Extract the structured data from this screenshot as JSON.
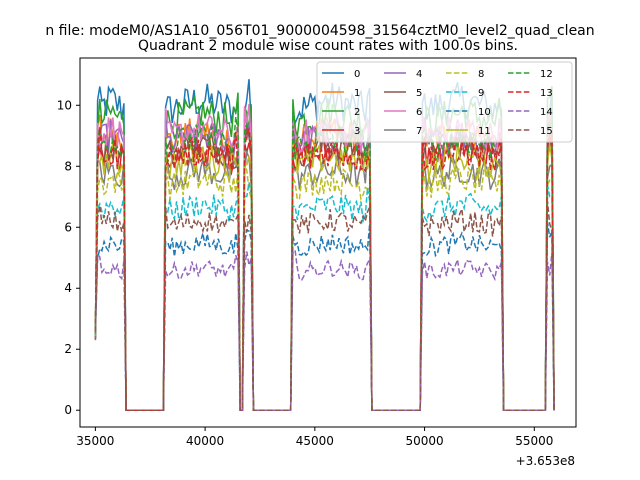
{
  "chart_data": {
    "type": "line",
    "suptitle": "n file: modeM0/AS1A10_056T01_9000004598_31564cztM0_level2_quad_clean",
    "title": "Quadrant 2 module wise count rates with 100.0s bins.",
    "xlabel": "",
    "ylabel": "",
    "x_offset_label": "+3.653e8",
    "x_tick_labels": [
      "35000",
      "40000",
      "45000",
      "50000",
      "55000"
    ],
    "y_tick_labels": [
      "0",
      "2",
      "4",
      "6",
      "8",
      "10"
    ],
    "xlim": [
      34300,
      56900
    ],
    "ylim": [
      -0.55,
      11.55
    ],
    "grid": false,
    "legend_placement": "top-right",
    "legend_columns": 4,
    "observation_segments": [
      {
        "start": 35100,
        "end": 36350
      },
      {
        "start": 38150,
        "end": 41500
      },
      {
        "start": 41800,
        "end": 42100
      },
      {
        "start": 44000,
        "end": 47500
      },
      {
        "start": 49900,
        "end": 53500
      },
      {
        "start": 55550,
        "end": 55850
      }
    ],
    "series": [
      {
        "name": "0",
        "color": "#1f77b4",
        "dash": "solid",
        "level": 9.8
      },
      {
        "name": "1",
        "color": "#ff7f0e",
        "dash": "solid",
        "level": 8.8
      },
      {
        "name": "2",
        "color": "#2ca02c",
        "dash": "solid",
        "level": 9.4
      },
      {
        "name": "3",
        "color": "#d62728",
        "dash": "solid",
        "level": 8.2
      },
      {
        "name": "4",
        "color": "#9467bd",
        "dash": "solid",
        "level": 8.7
      },
      {
        "name": "5",
        "color": "#8c564b",
        "dash": "solid",
        "level": 8.4
      },
      {
        "name": "6",
        "color": "#e377c2",
        "dash": "solid",
        "level": 8.9
      },
      {
        "name": "7",
        "color": "#7f7f7f",
        "dash": "solid",
        "level": 7.6
      },
      {
        "name": "8",
        "color": "#bcbd22",
        "dash": "dashed",
        "level": 7.3
      },
      {
        "name": "9",
        "color": "#17becf",
        "dash": "dashed",
        "level": 6.5
      },
      {
        "name": "10",
        "color": "#1f77b4",
        "dash": "dashed",
        "level": 5.3
      },
      {
        "name": "11",
        "color": "#bcbd22",
        "dash": "solid",
        "level": 8.0
      },
      {
        "name": "12",
        "color": "#2ca02c",
        "dash": "dashed",
        "level": 8.6
      },
      {
        "name": "13",
        "color": "#d62728",
        "dash": "dashed",
        "level": 8.2
      },
      {
        "name": "14",
        "color": "#9467bd",
        "dash": "dashed",
        "level": 4.5
      },
      {
        "name": "15",
        "color": "#8c564b",
        "dash": "dashed",
        "level": 6.0
      }
    ]
  }
}
